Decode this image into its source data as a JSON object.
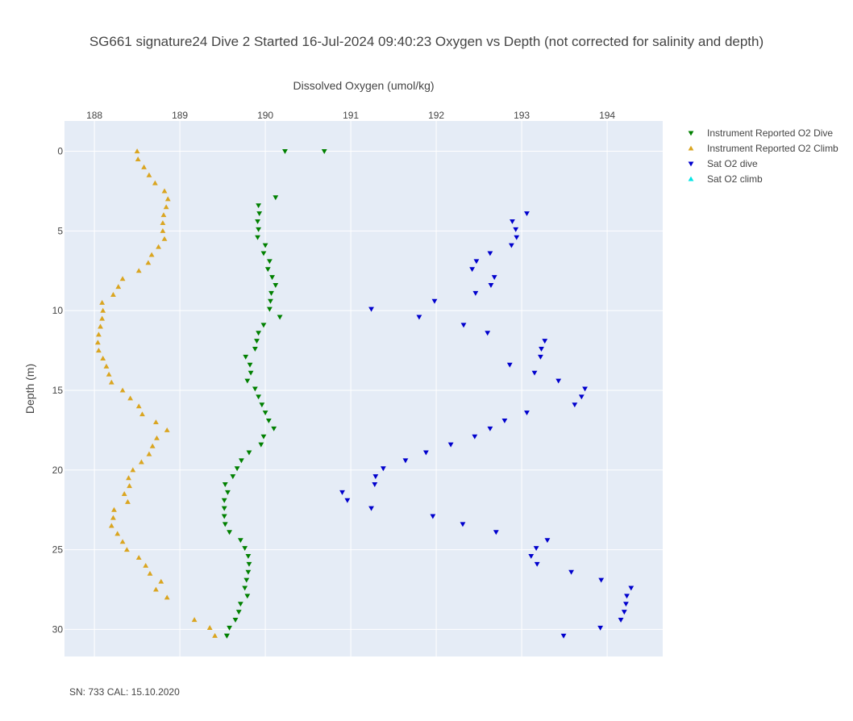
{
  "chart_data": {
    "type": "scatter",
    "title": "SG661 signature24 Dive 2 Started 16-Jul-2024 09:40:23  Oxygen vs Depth (not corrected for salinity and depth)",
    "xlabel": "Dissolved Oxygen (umol/kg)",
    "ylabel": "Depth (m)",
    "xlim": [
      187.65,
      194.65
    ],
    "ylim": [
      31.7,
      -1.9
    ],
    "x_axis_position": "top",
    "xticks": [
      188,
      189,
      190,
      191,
      192,
      193,
      194
    ],
    "yticks": [
      0,
      5,
      10,
      15,
      20,
      25,
      30
    ],
    "grid": true,
    "legend_position": "right",
    "series": [
      {
        "name": "Instrument Reported O2 Dive",
        "color": "#008000",
        "marker": "triangle-down",
        "x": [
          190.23,
          190.69,
          190.12,
          189.92,
          189.93,
          189.91,
          189.92,
          189.91,
          190.0,
          189.98,
          190.05,
          190.03,
          190.08,
          190.12,
          190.07,
          190.06,
          190.05,
          190.17,
          189.98,
          189.92,
          189.9,
          189.88,
          189.77,
          189.82,
          189.83,
          189.79,
          189.88,
          189.92,
          189.96,
          190.0,
          190.04,
          190.1,
          189.98,
          189.95,
          189.81,
          189.72,
          189.67,
          189.62,
          189.53,
          189.56,
          189.52,
          189.52,
          189.52,
          189.53,
          189.58,
          189.71,
          189.76,
          189.8,
          189.81,
          189.8,
          189.78,
          189.76,
          189.79,
          189.71,
          189.69,
          189.65,
          189.58,
          189.55,
          189.55
        ],
        "y": [
          0.0,
          0.0,
          2.9,
          3.4,
          3.9,
          4.4,
          4.9,
          5.4,
          5.9,
          6.4,
          6.9,
          7.4,
          7.9,
          8.4,
          8.9,
          9.4,
          9.9,
          10.4,
          10.9,
          11.4,
          11.9,
          12.4,
          12.9,
          13.4,
          13.9,
          14.4,
          14.9,
          15.4,
          15.9,
          16.4,
          16.9,
          17.4,
          17.9,
          18.4,
          18.9,
          19.4,
          19.9,
          20.4,
          20.9,
          21.4,
          21.9,
          22.4,
          22.9,
          23.4,
          23.9,
          24.4,
          24.9,
          25.4,
          25.9,
          26.4,
          26.9,
          27.4,
          27.9,
          28.4,
          28.9,
          29.4,
          29.9,
          30.4,
          30.4
        ]
      },
      {
        "name": "Instrument Reported O2 Climb",
        "color": "#DAA520",
        "marker": "triangle-up",
        "x": [
          189.41,
          189.35,
          189.17,
          188.85,
          188.72,
          188.78,
          188.65,
          188.6,
          188.52,
          188.38,
          188.33,
          188.27,
          188.2,
          188.22,
          188.23,
          188.39,
          188.35,
          188.41,
          188.4,
          188.45,
          188.55,
          188.64,
          188.68,
          188.73,
          188.85,
          188.72,
          188.56,
          188.52,
          188.42,
          188.33,
          188.2,
          188.17,
          188.14,
          188.1,
          188.05,
          188.04,
          188.05,
          188.07,
          188.09,
          188.1,
          188.09,
          188.22,
          188.28,
          188.33,
          188.52,
          188.63,
          188.67,
          188.75,
          188.82,
          188.8,
          188.8,
          188.81,
          188.84,
          188.86,
          188.82,
          188.71,
          188.64,
          188.58,
          188.51,
          188.5
        ],
        "y": [
          30.4,
          29.9,
          29.4,
          28.0,
          27.5,
          27.0,
          26.5,
          26.0,
          25.5,
          25.0,
          24.5,
          24.0,
          23.5,
          23.0,
          22.5,
          22.0,
          21.5,
          21.0,
          20.5,
          20.0,
          19.5,
          19.0,
          18.5,
          18.0,
          17.5,
          17.0,
          16.5,
          16.0,
          15.5,
          15.0,
          14.5,
          14.0,
          13.5,
          13.0,
          12.5,
          12.0,
          11.5,
          11.0,
          10.5,
          10.0,
          9.5,
          9.0,
          8.5,
          8.0,
          7.5,
          7.0,
          6.5,
          6.0,
          5.5,
          5.0,
          4.5,
          4.0,
          3.5,
          3.0,
          2.5,
          2.0,
          1.5,
          1.0,
          0.5,
          0.0
        ]
      },
      {
        "name": "Sat O2 dive",
        "color": "#0000CD",
        "marker": "triangle-down",
        "x": [
          193.06,
          192.89,
          192.93,
          192.94,
          192.88,
          192.63,
          192.47,
          192.42,
          192.68,
          192.64,
          192.46,
          191.98,
          191.24,
          191.8,
          192.32,
          192.6,
          193.27,
          193.23,
          193.22,
          192.86,
          193.15,
          193.43,
          193.74,
          193.7,
          193.62,
          193.06,
          192.8,
          192.63,
          192.45,
          192.17,
          191.88,
          191.64,
          191.38,
          191.29,
          191.28,
          190.9,
          190.96,
          191.24,
          191.96,
          192.31,
          192.7,
          193.3,
          193.17,
          193.11,
          193.18,
          193.58,
          193.93,
          194.28,
          194.23,
          194.22,
          194.2,
          194.16,
          193.92,
          193.49
        ],
        "y": [
          3.9,
          4.4,
          4.9,
          5.4,
          5.9,
          6.4,
          6.9,
          7.4,
          7.9,
          8.4,
          8.9,
          9.4,
          9.9,
          10.4,
          10.9,
          11.4,
          11.9,
          12.4,
          12.9,
          13.4,
          13.9,
          14.4,
          14.9,
          15.4,
          15.9,
          16.4,
          16.9,
          17.4,
          17.9,
          18.4,
          18.9,
          19.4,
          19.9,
          20.4,
          20.9,
          21.4,
          21.9,
          22.4,
          22.9,
          23.4,
          23.9,
          24.4,
          24.9,
          25.4,
          25.9,
          26.4,
          26.9,
          27.4,
          27.9,
          28.4,
          28.9,
          29.4,
          29.9,
          30.4
        ]
      },
      {
        "name": "Sat O2 climb",
        "color": "#00E5E5",
        "marker": "triangle-up",
        "x": [],
        "y": []
      }
    ]
  },
  "footer": {
    "text": "SN: 733  CAL: 15.10.2020"
  }
}
